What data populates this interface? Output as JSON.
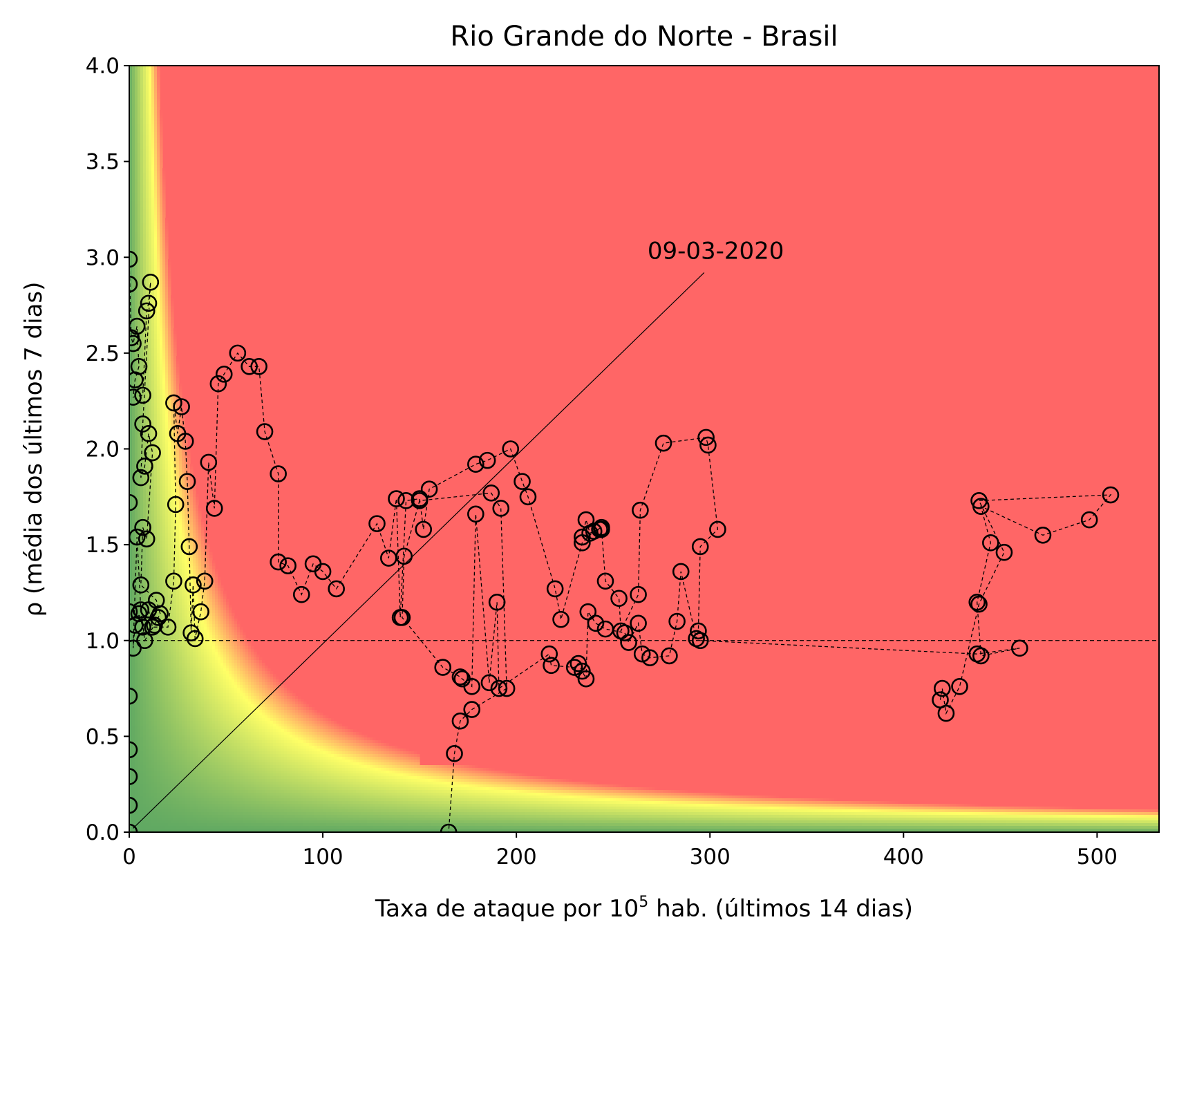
{
  "chart_data": {
    "type": "scatter",
    "title": "Rio Grande do Norte - Brasil",
    "xlabel": "Taxa de ataque por 10",
    "xlabel_superscript": "5",
    "xlabel_suffix": " hab. (últimos 14 dias)",
    "ylabel": "ρ (média dos últimos 7 dias)",
    "xlim": [
      0,
      532
    ],
    "ylim": [
      0.0,
      4.0
    ],
    "xticks": [
      "0",
      "100",
      "200",
      "300",
      "400",
      "500"
    ],
    "yticks": [
      "0.0",
      "0.5",
      "1.0",
      "1.5",
      "2.0",
      "2.5",
      "3.0",
      "3.5",
      "4.0"
    ],
    "grid": false,
    "reference_line_y": 1.0,
    "background": "risk heatmap: green (low) → yellow → red (high), rising with attack rate × ρ",
    "colors": {
      "green": "#5fa862",
      "yellow": "#ffff66",
      "red": "#ff6666",
      "marker": "#000000"
    },
    "annotation": {
      "text": "09-03-2020",
      "x": 297,
      "y": 2.92,
      "arrow_to": [
        2,
        0.02
      ]
    },
    "series": [
      {
        "marker": "open-circle",
        "line": "dashed",
        "x": [
          0,
          0,
          0,
          0,
          0,
          0,
          0,
          0,
          0,
          1,
          2,
          4,
          5,
          3,
          2,
          7,
          9,
          10,
          11,
          7,
          6,
          8,
          10,
          12,
          9,
          7,
          6,
          14,
          16,
          15,
          13,
          8,
          6,
          4,
          2,
          3,
          5,
          7,
          10,
          12,
          20,
          23,
          24,
          23,
          25,
          27,
          29,
          30,
          31,
          32,
          33,
          34,
          37,
          39,
          41,
          44,
          46,
          49,
          56,
          62,
          67,
          70,
          77,
          77,
          82,
          89,
          95,
          100,
          107,
          128,
          134,
          138,
          140,
          143,
          150,
          152,
          155,
          179,
          185,
          197,
          203,
          206,
          220,
          223,
          234,
          240,
          244,
          234,
          236,
          238,
          243,
          244,
          246,
          253,
          254,
          263,
          264,
          276,
          298,
          299,
          304,
          295,
          294,
          293,
          285,
          283,
          279,
          269,
          265,
          263,
          258,
          256,
          246,
          241,
          237,
          236,
          234,
          232,
          230,
          218,
          217,
          191,
          190,
          186,
          179,
          177,
          172,
          171,
          162,
          141,
          142,
          150,
          187,
          192,
          195,
          177,
          171,
          168,
          165
        ],
        "y": [
          0.0,
          0.14,
          0.29,
          0.43,
          0.71,
          1.15,
          1.72,
          2.86,
          2.99,
          2.58,
          2.55,
          2.64,
          2.43,
          2.36,
          2.27,
          2.28,
          2.72,
          2.76,
          2.87,
          2.13,
          1.85,
          1.91,
          2.08,
          1.98,
          1.53,
          1.59,
          1.29,
          1.21,
          1.14,
          1.12,
          1.08,
          1.0,
          1.16,
          1.54,
          0.96,
          1.08,
          1.14,
          1.07,
          1.16,
          1.07,
          1.07,
          1.31,
          1.71,
          2.24,
          2.08,
          2.22,
          2.04,
          1.83,
          1.49,
          1.04,
          1.29,
          1.01,
          1.15,
          1.31,
          1.93,
          1.69,
          2.34,
          2.39,
          2.5,
          2.43,
          2.43,
          2.09,
          1.87,
          1.41,
          1.39,
          1.24,
          1.4,
          1.36,
          1.27,
          1.61,
          1.43,
          1.74,
          1.12,
          1.73,
          1.74,
          1.58,
          1.79,
          1.92,
          1.94,
          2.0,
          1.83,
          1.75,
          1.27,
          1.11,
          1.51,
          1.57,
          1.59,
          1.54,
          1.63,
          1.56,
          1.58,
          1.58,
          1.31,
          1.22,
          1.05,
          1.24,
          1.68,
          2.03,
          2.06,
          2.02,
          1.58,
          1.49,
          1.05,
          1.01,
          1.36,
          1.1,
          0.92,
          0.91,
          0.93,
          1.09,
          0.99,
          1.04,
          1.06,
          1.09,
          1.15,
          0.8,
          0.84,
          0.88,
          0.86,
          0.87,
          0.93,
          0.75,
          1.2,
          0.78,
          1.66,
          0.76,
          0.8,
          0.81,
          0.86,
          1.12,
          1.44,
          1.73,
          1.77,
          1.69,
          0.75,
          0.64,
          0.58,
          0.41,
          0.0
        ]
      },
      {
        "marker": "open-circle",
        "line": "dashed",
        "x": [
          295,
          438,
          460,
          440,
          438,
          445,
          440,
          472,
          496,
          507,
          439,
          452,
          439,
          429,
          422,
          420,
          419
        ],
        "y": [
          1.0,
          0.93,
          0.96,
          0.92,
          1.2,
          1.51,
          1.7,
          1.55,
          1.63,
          1.76,
          1.73,
          1.46,
          1.19,
          0.76,
          0.62,
          0.75,
          0.69
        ]
      }
    ]
  }
}
